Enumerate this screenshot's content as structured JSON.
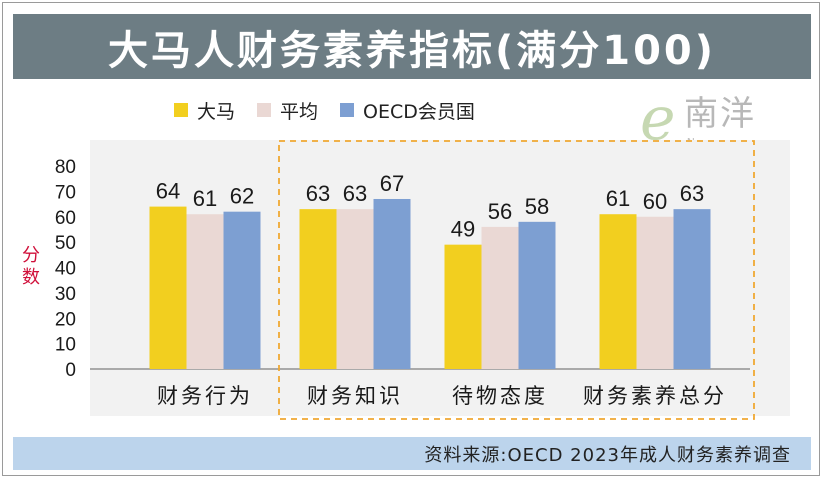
{
  "title": "大马人财务素养指标(满分100)",
  "legend": [
    {
      "name": "大马",
      "color": "#f2cf1f"
    },
    {
      "name": "平均",
      "color": "#ead8d4"
    },
    {
      "name": "OECD会员国",
      "color": "#7d9fd2"
    }
  ],
  "watermark": {
    "brand": "南洋",
    "url": "eNanyang.my"
  },
  "ylabel": "分数",
  "source": "资料来源:OECD 2023年成人财务素养调查",
  "chart_data": {
    "type": "bar",
    "title": "大马人财务素养指标(满分100)",
    "xlabel": "",
    "ylabel": "分数",
    "ylim": [
      0,
      80
    ],
    "yticks": [
      0,
      10,
      20,
      30,
      40,
      50,
      60,
      70,
      80
    ],
    "categories": [
      "财务行为",
      "财务知识",
      "待物态度",
      "财务素养总分"
    ],
    "series": [
      {
        "name": "大马",
        "values": [
          64,
          63,
          49,
          61
        ]
      },
      {
        "name": "平均",
        "values": [
          61,
          63,
          56,
          60
        ]
      },
      {
        "name": "OECD会员国",
        "values": [
          62,
          67,
          58,
          63
        ]
      }
    ],
    "highlight": [
      "财务知识",
      "待物态度",
      "财务素养总分"
    ]
  }
}
